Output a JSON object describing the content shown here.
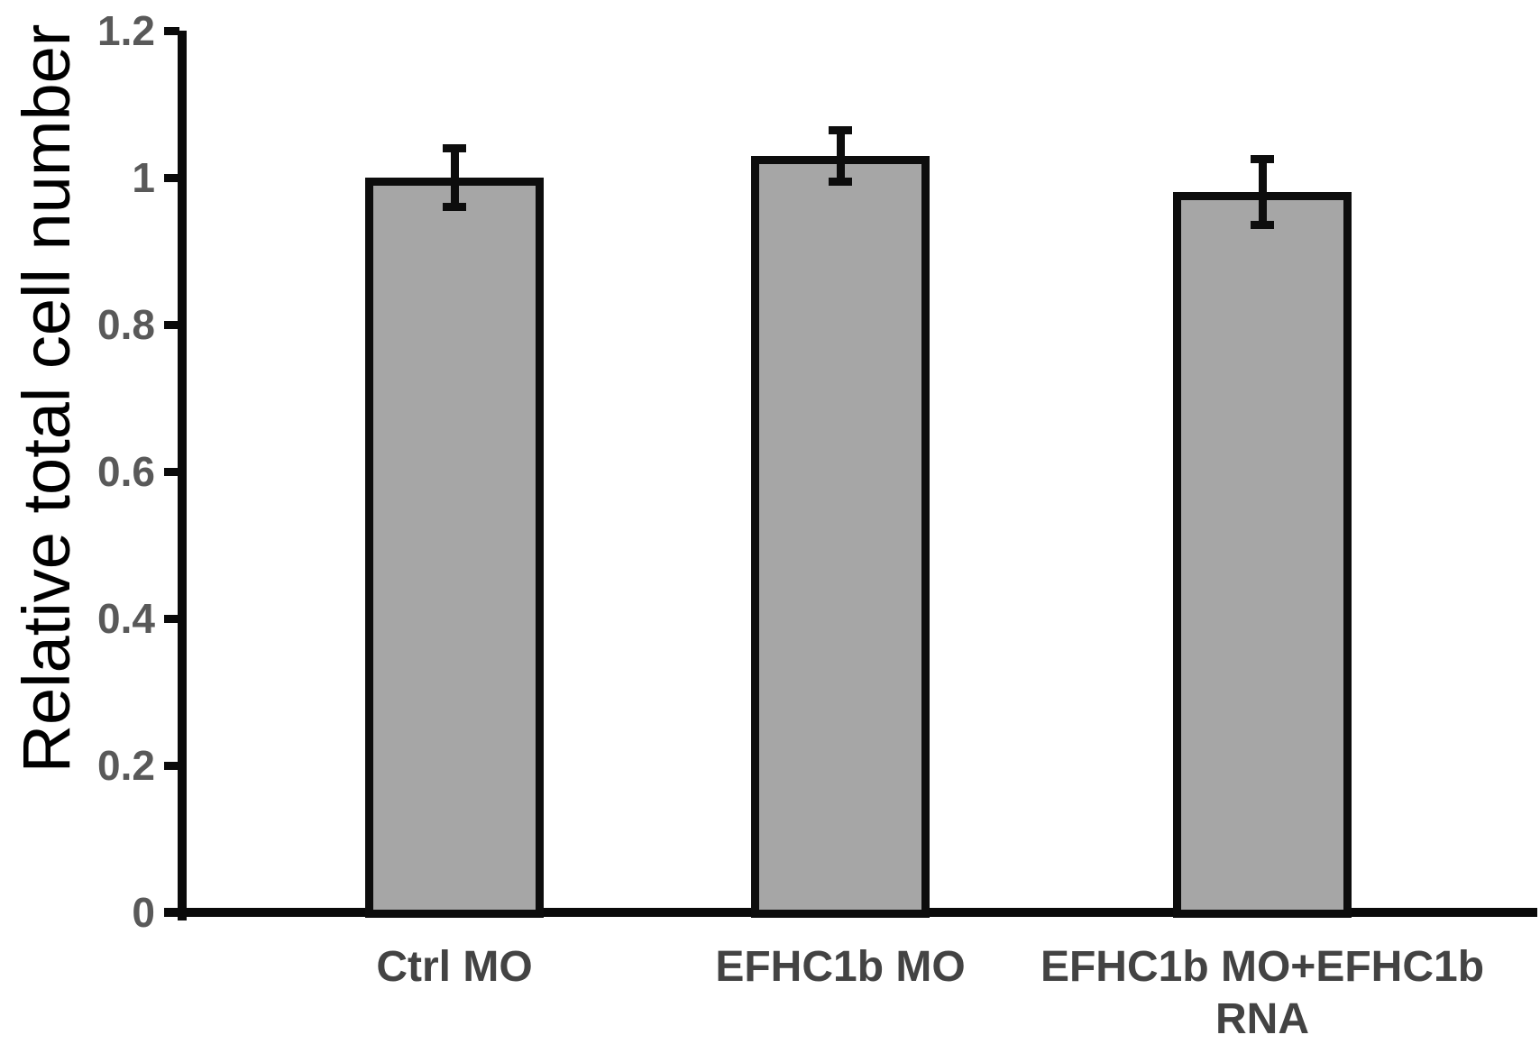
{
  "chart_data": {
    "type": "bar",
    "title": "",
    "ylabel": "Relative total cell number",
    "xlabel": "",
    "categories": [
      "Ctrl MO",
      "EFHC1b MO",
      "EFHC1b MO+EFHC1b\nRNA"
    ],
    "values": [
      1.0,
      1.03,
      0.98
    ],
    "errors": [
      0.04,
      0.035,
      0.045
    ],
    "ylim": [
      0,
      1.2
    ],
    "yticks": [
      0,
      0.2,
      0.4,
      0.6,
      0.8,
      1,
      1.2
    ],
    "ytick_labels": [
      "0",
      "0.2",
      "0.4",
      "0.6",
      "0.8",
      "1",
      "1.2"
    ],
    "grid": false,
    "legend": null,
    "bar_fill_color": "#a6a6a6",
    "bar_border_color": "#0d0d0d",
    "error_bar_color": "#0d0d0d",
    "axis_color": "#0a0a0a",
    "ytick_label_color": "#595959",
    "category_label_color": "#434343",
    "ylabel_color": "#000000"
  }
}
